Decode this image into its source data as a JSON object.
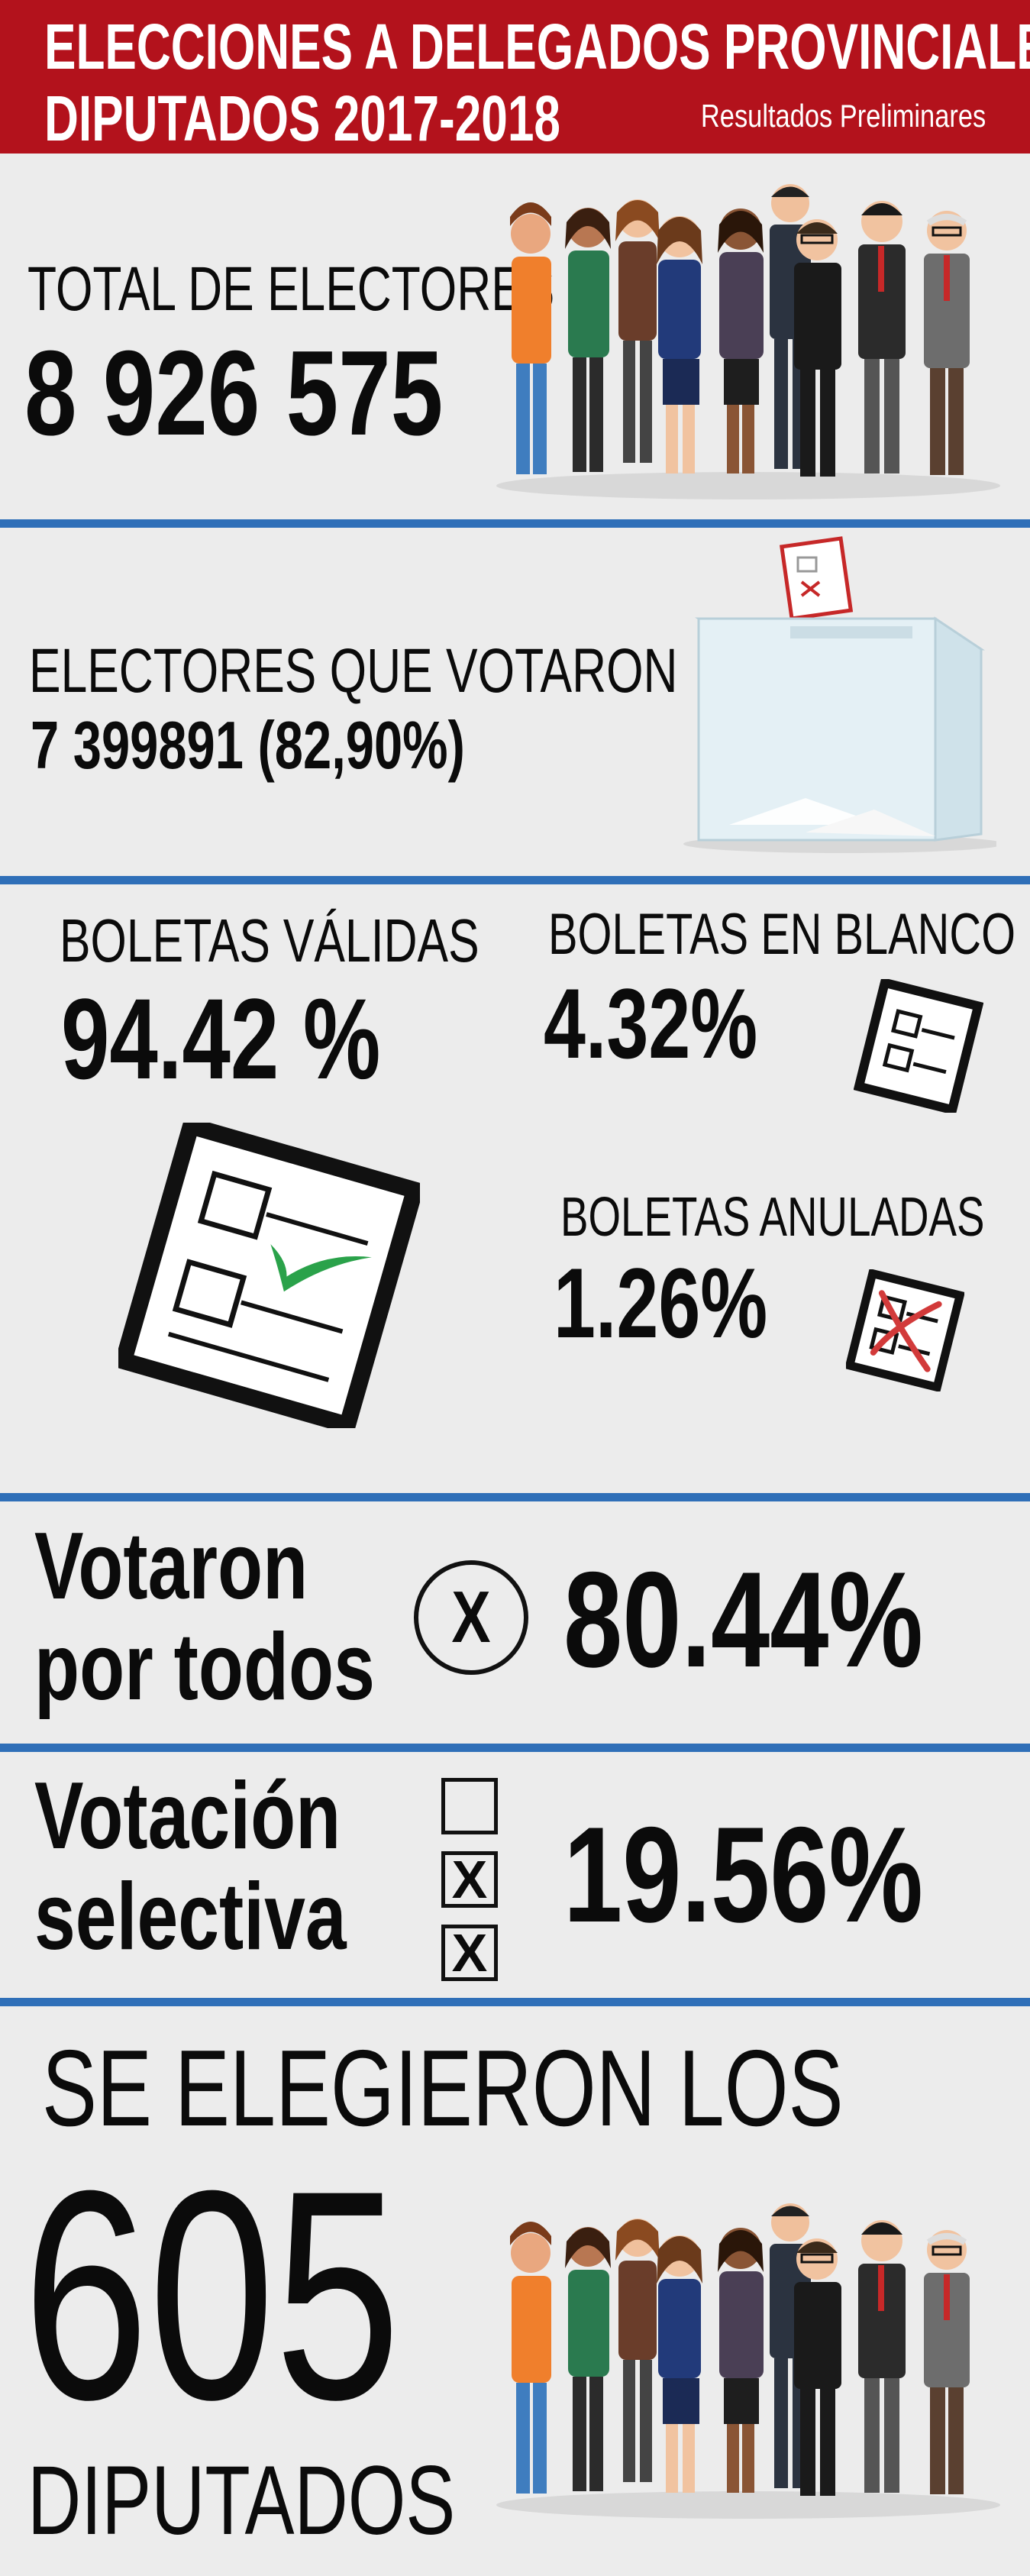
{
  "header": {
    "title_line1": "ELECCIONES A DELEGADOS PROVINCIALES Y",
    "title_line2": "DIPUTADOS 2017-2018",
    "subtitle": "Resultados Preliminares"
  },
  "electores": {
    "label": "TOTAL DE ELECTORES",
    "value": "8 926 575"
  },
  "votaron": {
    "label": "ELECTORES QUE VOTARON",
    "value": "7 399891 (82,90%)"
  },
  "boletas": {
    "validas_label": "BOLETAS VÁLIDAS",
    "validas_value": "94.42 %",
    "blanco_label": "BOLETAS EN BLANCO",
    "blanco_value": "4.32%",
    "anuladas_label": "BOLETAS ANULADAS",
    "anuladas_value": "1.26%"
  },
  "por_todos": {
    "label_line1": "Votaron",
    "label_line2": "por todos",
    "mark": "X",
    "value": "80.44%"
  },
  "selectiva": {
    "label_line1": "Votación",
    "label_line2": "selectiva",
    "marks": [
      "",
      "X",
      "X"
    ],
    "value": "19.56%"
  },
  "elegidos": {
    "line1": "SE ELEGIERON LOS",
    "number": "605",
    "line2": "DIPUTADOS"
  },
  "colors": {
    "header_red": "#b3121c",
    "divider_blue": "#2f6fb8",
    "background": "#ececec",
    "check_green": "#2aa24a",
    "cross_red": "#d23a3a"
  },
  "icons": [
    "people-group-illustration",
    "ballot-box-icon",
    "ballot-check-icon",
    "blank-ballot-icon",
    "annulled-ballot-icon"
  ]
}
